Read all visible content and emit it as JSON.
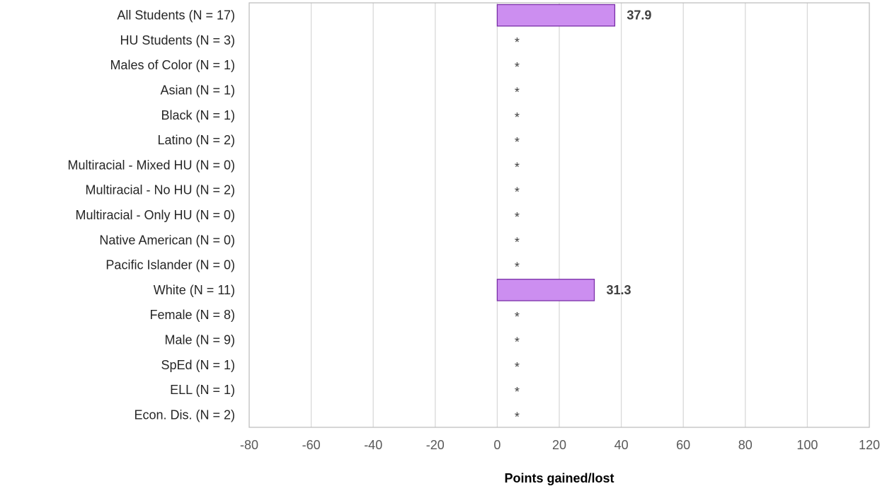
{
  "chart_data": {
    "type": "bar",
    "orientation": "horizontal",
    "categories": [
      "All Students (N = 17)",
      "HU Students (N = 3)",
      "Males of Color (N = 1)",
      "Asian (N = 1)",
      "Black (N = 1)",
      "Latino (N = 2)",
      "Multiracial - Mixed HU (N = 0)",
      "Multiracial - No HU (N = 2)",
      "Multiracial - Only HU (N = 0)",
      "Native American (N = 0)",
      "Pacific Islander (N = 0)",
      "White (N = 11)",
      "Female (N = 8)",
      "Male (N = 9)",
      "SpEd (N = 1)",
      "ELL (N = 1)",
      "Econ. Dis. (N = 2)"
    ],
    "values": [
      37.9,
      null,
      null,
      null,
      null,
      null,
      null,
      null,
      null,
      null,
      null,
      31.3,
      null,
      null,
      null,
      null,
      null
    ],
    "data_labels": [
      "37.9",
      "*",
      "*",
      "*",
      "*",
      "*",
      "*",
      "*",
      "*",
      "*",
      "*",
      "31.3",
      "*",
      "*",
      "*",
      "*",
      "*"
    ],
    "xlabel": "Points gained/lost",
    "ylabel": "",
    "xlim": [
      -80,
      120
    ],
    "x_ticks": [
      -80,
      -60,
      -40,
      -20,
      0,
      20,
      40,
      60,
      80,
      100,
      120
    ],
    "x_tick_labels": [
      "-80",
      "-60",
      "-40",
      "-20",
      "0",
      "20",
      "40",
      "60",
      "80",
      "100",
      "120"
    ],
    "grid": true,
    "legend": "none",
    "colors": {
      "bar_fill": "#cc8ef0",
      "bar_stroke": "#7a2fa8"
    }
  }
}
